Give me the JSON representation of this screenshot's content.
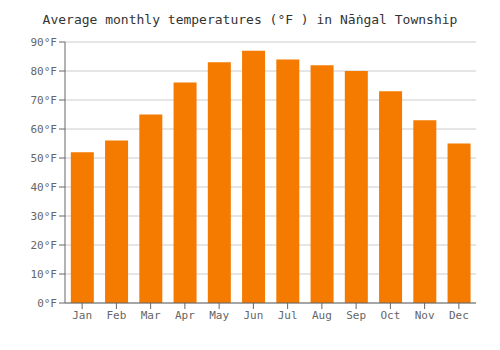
{
  "chart_data": {
    "type": "bar",
    "title": "Average monthly temperatures (°F ) in Nā̇ngal Township",
    "categories": [
      "Jan",
      "Feb",
      "Mar",
      "Apr",
      "May",
      "Jun",
      "Jul",
      "Aug",
      "Sep",
      "Oct",
      "Nov",
      "Dec"
    ],
    "values": [
      52,
      56,
      65,
      76,
      83,
      87,
      84,
      82,
      80,
      73,
      63,
      55
    ],
    "color": "#F47A00",
    "ylim": [
      0,
      90
    ],
    "yticks": [
      {
        "value": 0,
        "label": "0°F"
      },
      {
        "value": 10,
        "label": "10°F"
      },
      {
        "value": 20,
        "label": "20°F"
      },
      {
        "value": 30,
        "label": "30°F"
      },
      {
        "value": 40,
        "label": "40°F"
      },
      {
        "value": 50,
        "label": "50°F"
      },
      {
        "value": 60,
        "label": "60°F"
      },
      {
        "value": 70,
        "label": "70°F"
      },
      {
        "value": 80,
        "label": "80°F"
      },
      {
        "value": 90,
        "label": "90°F"
      }
    ],
    "grid": true
  }
}
